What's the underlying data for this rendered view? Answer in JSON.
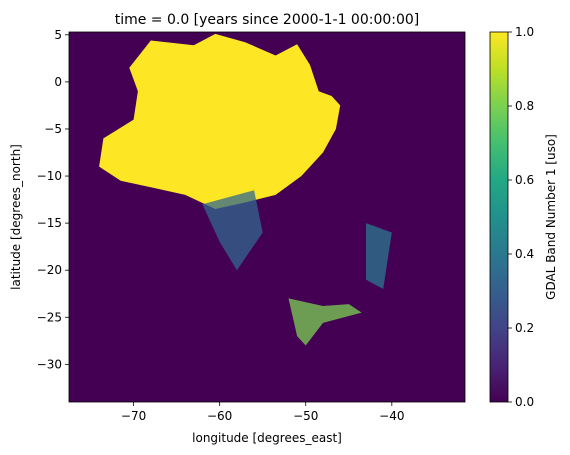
{
  "chart_data": {
    "type": "heatmap",
    "title": "time = 0.0 [years since 2000-1-1 00:00:00]",
    "xlabel": "longitude [degrees_east]",
    "ylabel": "latitude [degrees_north]",
    "colorbar_label": "GDAL Band Number 1 [uso]",
    "colormap": "viridis",
    "background_color": "#440154",
    "high_color": "#fde725",
    "xlim": [
      -77.5,
      -31.5
    ],
    "ylim": [
      -34,
      5.3
    ],
    "clim": [
      0.0,
      1.0
    ],
    "x_ticks": [
      -70,
      -60,
      -50,
      -40
    ],
    "x_tick_labels": [
      "−70",
      "−60",
      "−50",
      "−40"
    ],
    "y_ticks": [
      5,
      0,
      -5,
      -10,
      -15,
      -20,
      -25,
      -30
    ],
    "y_tick_labels": [
      "5",
      "0",
      "−5",
      "−10",
      "−15",
      "−20",
      "−25",
      "−30"
    ],
    "colorbar_ticks": [
      0.0,
      0.2,
      0.4,
      0.6,
      0.8,
      1.0
    ],
    "colorbar_tick_labels": [
      "0.0",
      "0.2",
      "0.4",
      "0.6",
      "0.8",
      "1.0"
    ],
    "high_value_region": [
      [
        -68.0,
        4.4
      ],
      [
        -63.0,
        3.9
      ],
      [
        -60.5,
        5.1
      ],
      [
        -57.0,
        4.2
      ],
      [
        -53.5,
        2.8
      ],
      [
        -51.0,
        4.0
      ],
      [
        -49.5,
        1.8
      ],
      [
        -48.5,
        -1.0
      ],
      [
        -47.0,
        -1.5
      ],
      [
        -46.0,
        -2.5
      ],
      [
        -46.5,
        -5.0
      ],
      [
        -48.0,
        -7.5
      ],
      [
        -50.5,
        -10.0
      ],
      [
        -53.5,
        -12.0
      ],
      [
        -57.0,
        -12.8
      ],
      [
        -60.5,
        -13.5
      ],
      [
        -64.0,
        -12.0
      ],
      [
        -68.0,
        -11.2
      ],
      [
        -71.5,
        -10.5
      ],
      [
        -74.0,
        -9.0
      ],
      [
        -73.5,
        -6.0
      ],
      [
        -70.0,
        -4.0
      ],
      [
        -69.5,
        -1.0
      ],
      [
        -70.5,
        1.5
      ]
    ],
    "medium_value_regions": [
      [
        [
          -52.0,
          -23.0
        ],
        [
          -48.0,
          -23.8
        ],
        [
          -45.0,
          -23.6
        ],
        [
          -43.5,
          -24.5
        ],
        [
          -48.0,
          -25.6
        ],
        [
          -50.0,
          -28.0
        ],
        [
          -51.0,
          -27.0
        ]
      ],
      [
        [
          -43.0,
          -15.0
        ],
        [
          -40.0,
          -16.0
        ],
        [
          -41.0,
          -22.0
        ],
        [
          -43.0,
          -21.0
        ]
      ],
      [
        [
          -62.0,
          -13.0
        ],
        [
          -56.0,
          -11.5
        ],
        [
          -55.0,
          -16.0
        ],
        [
          -58.0,
          -20.0
        ],
        [
          -60.0,
          -17.0
        ]
      ]
    ]
  }
}
